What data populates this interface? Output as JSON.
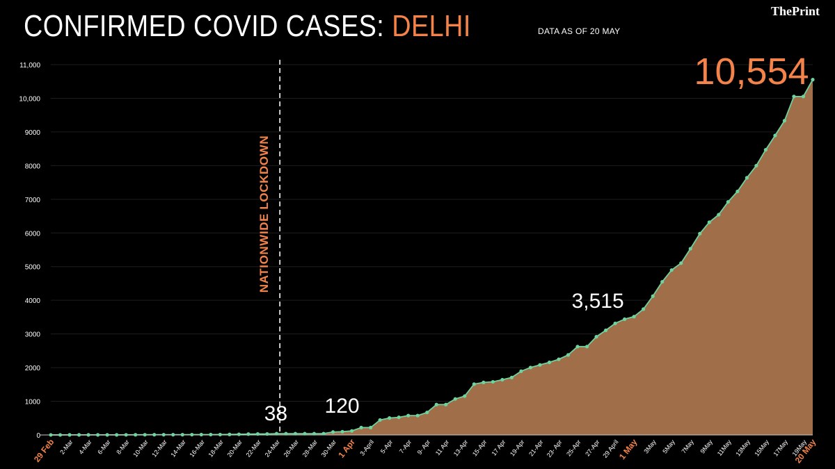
{
  "header": {
    "title_main": "CONFIRMED COVID CASES: ",
    "title_accent": "DELHI",
    "as_of": "DATA AS OF 20 MAY",
    "logo": "ThePrint"
  },
  "colors": {
    "background": "#000000",
    "accent": "#f4834a",
    "line": "#6fd3a0",
    "area": "#a06e48",
    "grid": "#1e1e1e",
    "text": "#ffffff"
  },
  "chart_data": {
    "type": "area",
    "title": "CONFIRMED COVID CASES: DELHI",
    "xlabel": "",
    "ylabel": "",
    "ylim": [
      0,
      11000
    ],
    "y_ticks": [
      "0",
      "1000",
      "2000",
      "3000",
      "4000",
      "5000",
      "6000",
      "7000",
      "8000",
      "9000",
      "10,000",
      "11,000"
    ],
    "y_tick_values": [
      0,
      1000,
      2000,
      3000,
      4000,
      5000,
      6000,
      7000,
      8000,
      9000,
      10000,
      11000
    ],
    "x_ticks": [
      {
        "i": 0,
        "label": "29 Feb",
        "accent": true
      },
      {
        "i": 2,
        "label": "2-Mar"
      },
      {
        "i": 4,
        "label": "4-Mar"
      },
      {
        "i": 6,
        "label": "6-Mar"
      },
      {
        "i": 8,
        "label": "8-Mar"
      },
      {
        "i": 10,
        "label": "10-Mar"
      },
      {
        "i": 12,
        "label": "12-Mar"
      },
      {
        "i": 14,
        "label": "14-Mar"
      },
      {
        "i": 16,
        "label": "16-Mar"
      },
      {
        "i": 18,
        "label": "18-Mar"
      },
      {
        "i": 20,
        "label": "20-Mar"
      },
      {
        "i": 22,
        "label": "22-Mar"
      },
      {
        "i": 24,
        "label": "24-Mar"
      },
      {
        "i": 26,
        "label": "26-Mar"
      },
      {
        "i": 28,
        "label": "28-Mar"
      },
      {
        "i": 30,
        "label": "30-Mar"
      },
      {
        "i": 32,
        "label": "1  Apr",
        "accent": true
      },
      {
        "i": 34,
        "label": "3-April"
      },
      {
        "i": 36,
        "label": "5-Apr"
      },
      {
        "i": 38,
        "label": "7-Apr"
      },
      {
        "i": 40,
        "label": "9- Apr"
      },
      {
        "i": 42,
        "label": "11 Apr"
      },
      {
        "i": 44,
        "label": "13-Apr"
      },
      {
        "i": 46,
        "label": "15-Apr"
      },
      {
        "i": 48,
        "label": "17 Apr"
      },
      {
        "i": 50,
        "label": "19-Apr"
      },
      {
        "i": 52,
        "label": "21-Apr"
      },
      {
        "i": 54,
        "label": "23- Apr"
      },
      {
        "i": 56,
        "label": "25-Apr"
      },
      {
        "i": 58,
        "label": "27-Apr"
      },
      {
        "i": 60,
        "label": "29 April"
      },
      {
        "i": 62,
        "label": "1  May",
        "accent": true
      },
      {
        "i": 64,
        "label": "3May"
      },
      {
        "i": 66,
        "label": "5May"
      },
      {
        "i": 68,
        "label": "7May"
      },
      {
        "i": 70,
        "label": "9May"
      },
      {
        "i": 72,
        "label": "11May"
      },
      {
        "i": 74,
        "label": "13May"
      },
      {
        "i": 76,
        "label": "15May"
      },
      {
        "i": 78,
        "label": "17May"
      },
      {
        "i": 80,
        "label": "19May"
      },
      {
        "i": 81,
        "label": "20 May",
        "accent": true
      }
    ],
    "series": [
      {
        "name": "Confirmed cases",
        "values": [
          1,
          1,
          3,
          3,
          3,
          3,
          3,
          3,
          4,
          5,
          6,
          7,
          7,
          7,
          8,
          9,
          10,
          11,
          12,
          15,
          19,
          26,
          30,
          30,
          38,
          38,
          38,
          38,
          38,
          40,
          87,
          97,
          120,
          219,
          219,
          445,
          503,
          523,
          576,
          576,
          669,
          903,
          903,
          1069,
          1154,
          1510,
          1561,
          1578,
          1640,
          1707,
          1893,
          2003,
          2081,
          2156,
          2248,
          2376,
          2625,
          2625,
          2918,
          3108,
          3314,
          3439,
          3515,
          3738,
          4122,
          4549,
          4898,
          5104,
          5532,
          5980,
          6318,
          6542,
          6923,
          7233,
          7639,
          7998,
          8470,
          8895,
          9333,
          10054,
          10054,
          10554
        ]
      }
    ],
    "annotations": [
      {
        "label": "38",
        "i": 24
      },
      {
        "label": "120",
        "i": 32
      },
      {
        "label": "3,515",
        "i": 62
      },
      {
        "label": "10,554",
        "i": 81,
        "accent": true
      }
    ],
    "event_marker": {
      "label": "NATIONWIDE LOCKDOWN",
      "i": 24.5
    }
  }
}
